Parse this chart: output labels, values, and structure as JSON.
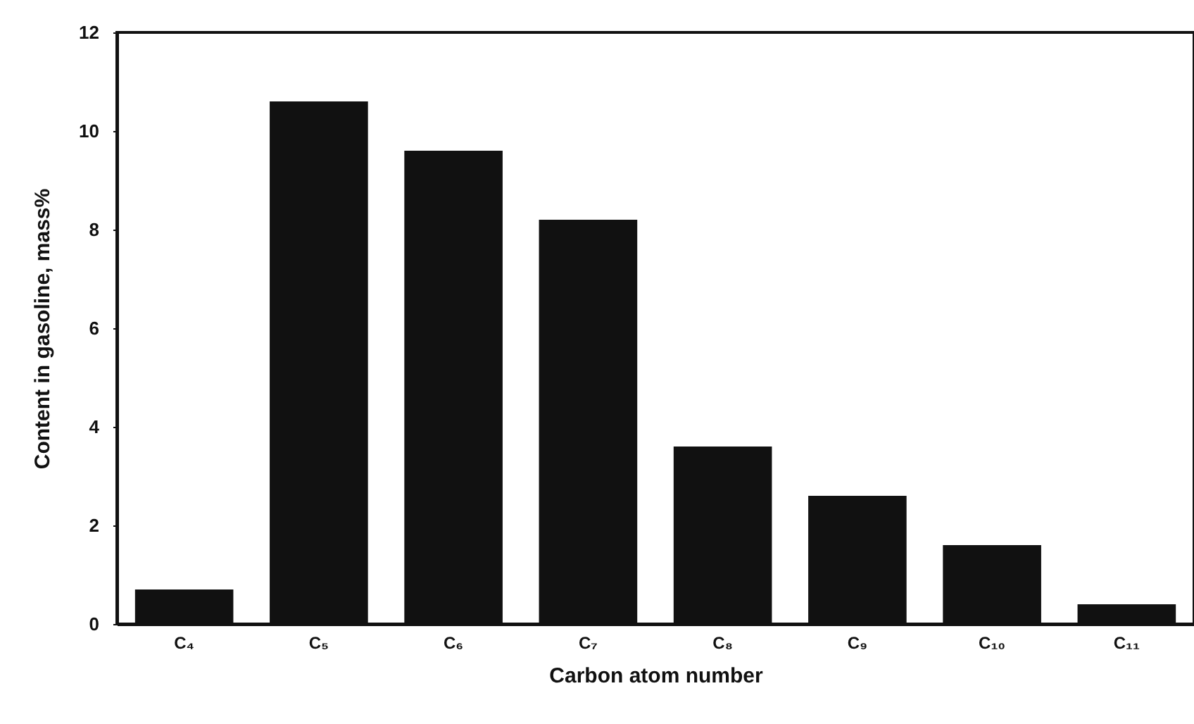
{
  "chart_data": {
    "type": "bar",
    "xlabel": "Carbon atom number",
    "ylabel": "Content in gasoline, mass%",
    "categories": [
      "C₄",
      "C₅",
      "C₆",
      "C₇",
      "C₈",
      "C₉",
      "C₁₀",
      "C₁₁"
    ],
    "values": [
      0.7,
      10.6,
      9.6,
      8.2,
      3.6,
      2.6,
      1.6,
      0.4
    ],
    "color": "#111111",
    "ylim": [
      0,
      12
    ],
    "yticks": [
      0,
      2,
      4,
      6,
      8,
      10,
      12
    ],
    "grid": false
  }
}
